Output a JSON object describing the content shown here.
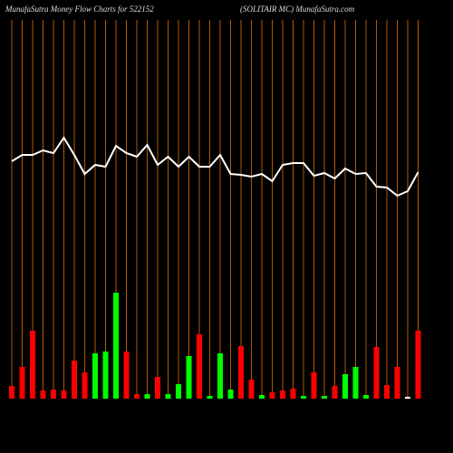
{
  "chart_data": {
    "type": "bar",
    "title": "MunafaSutra  Money Flow  Charts for 522152",
    "subtitle": "(SOLITAIR MC) MunafaSutra.com",
    "values": [
      14,
      35,
      75,
      9,
      10,
      9,
      42,
      29,
      50,
      52,
      117,
      52,
      5,
      5,
      24,
      5,
      16,
      47,
      71,
      3,
      50,
      10,
      58,
      21,
      4,
      7,
      9,
      11,
      3,
      29,
      3,
      14,
      27,
      35,
      4,
      57,
      15,
      35,
      2,
      75
    ],
    "colors": [
      "#ff0000",
      "#ff0000",
      "#ff0000",
      "#ff0000",
      "#ff0000",
      "#ff0000",
      "#ff0000",
      "#ff0000",
      "#00ff00",
      "#00ff00",
      "#00ff00",
      "#ff0000",
      "#ff0000",
      "#00ff00",
      "#ff0000",
      "#00ff00",
      "#00ff00",
      "#00ff00",
      "#ff0000",
      "#00ff00",
      "#00ff00",
      "#00ff00",
      "#ff0000",
      "#ff0000",
      "#00ff00",
      "#ff0000",
      "#ff0000",
      "#ff0000",
      "#00ff00",
      "#ff0000",
      "#00ff00",
      "#ff0000",
      "#00ff00",
      "#00ff00",
      "#00ff00",
      "#ff0000",
      "#ff0000",
      "#ff0000",
      "#ffffff",
      "#ff0000"
    ],
    "line": {
      "color": "#ffffff",
      "values": [
        262,
        269,
        269,
        274,
        271,
        288,
        269,
        248,
        258,
        256,
        279,
        271,
        267,
        280,
        258,
        267,
        256,
        267,
        256,
        256,
        269,
        248,
        247,
        245,
        248,
        240,
        258,
        260,
        260,
        246,
        249,
        243,
        254,
        248,
        249,
        234,
        233,
        224,
        229,
        250
      ]
    },
    "ylim": [
      0,
      440
    ],
    "grid_color": "#b35900"
  }
}
